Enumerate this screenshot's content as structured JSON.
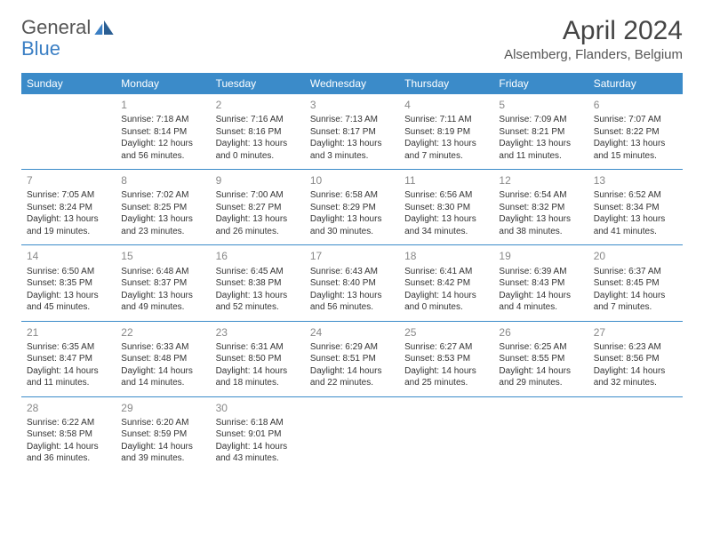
{
  "logo": {
    "part1": "General",
    "part2": "Blue"
  },
  "title": "April 2024",
  "location": "Alsemberg, Flanders, Belgium",
  "colors": {
    "header_bg": "#3b8bc9",
    "header_text": "#ffffff",
    "border": "#3b8bc9",
    "daynum": "#888888",
    "body_text": "#333333",
    "logo_blue": "#3b7fc4"
  },
  "weekdays": [
    "Sunday",
    "Monday",
    "Tuesday",
    "Wednesday",
    "Thursday",
    "Friday",
    "Saturday"
  ],
  "weeks": [
    [
      null,
      {
        "d": "1",
        "sr": "7:18 AM",
        "ss": "8:14 PM",
        "dl": "12 hours and 56 minutes."
      },
      {
        "d": "2",
        "sr": "7:16 AM",
        "ss": "8:16 PM",
        "dl": "13 hours and 0 minutes."
      },
      {
        "d": "3",
        "sr": "7:13 AM",
        "ss": "8:17 PM",
        "dl": "13 hours and 3 minutes."
      },
      {
        "d": "4",
        "sr": "7:11 AM",
        "ss": "8:19 PM",
        "dl": "13 hours and 7 minutes."
      },
      {
        "d": "5",
        "sr": "7:09 AM",
        "ss": "8:21 PM",
        "dl": "13 hours and 11 minutes."
      },
      {
        "d": "6",
        "sr": "7:07 AM",
        "ss": "8:22 PM",
        "dl": "13 hours and 15 minutes."
      }
    ],
    [
      {
        "d": "7",
        "sr": "7:05 AM",
        "ss": "8:24 PM",
        "dl": "13 hours and 19 minutes."
      },
      {
        "d": "8",
        "sr": "7:02 AM",
        "ss": "8:25 PM",
        "dl": "13 hours and 23 minutes."
      },
      {
        "d": "9",
        "sr": "7:00 AM",
        "ss": "8:27 PM",
        "dl": "13 hours and 26 minutes."
      },
      {
        "d": "10",
        "sr": "6:58 AM",
        "ss": "8:29 PM",
        "dl": "13 hours and 30 minutes."
      },
      {
        "d": "11",
        "sr": "6:56 AM",
        "ss": "8:30 PM",
        "dl": "13 hours and 34 minutes."
      },
      {
        "d": "12",
        "sr": "6:54 AM",
        "ss": "8:32 PM",
        "dl": "13 hours and 38 minutes."
      },
      {
        "d": "13",
        "sr": "6:52 AM",
        "ss": "8:34 PM",
        "dl": "13 hours and 41 minutes."
      }
    ],
    [
      {
        "d": "14",
        "sr": "6:50 AM",
        "ss": "8:35 PM",
        "dl": "13 hours and 45 minutes."
      },
      {
        "d": "15",
        "sr": "6:48 AM",
        "ss": "8:37 PM",
        "dl": "13 hours and 49 minutes."
      },
      {
        "d": "16",
        "sr": "6:45 AM",
        "ss": "8:38 PM",
        "dl": "13 hours and 52 minutes."
      },
      {
        "d": "17",
        "sr": "6:43 AM",
        "ss": "8:40 PM",
        "dl": "13 hours and 56 minutes."
      },
      {
        "d": "18",
        "sr": "6:41 AM",
        "ss": "8:42 PM",
        "dl": "14 hours and 0 minutes."
      },
      {
        "d": "19",
        "sr": "6:39 AM",
        "ss": "8:43 PM",
        "dl": "14 hours and 4 minutes."
      },
      {
        "d": "20",
        "sr": "6:37 AM",
        "ss": "8:45 PM",
        "dl": "14 hours and 7 minutes."
      }
    ],
    [
      {
        "d": "21",
        "sr": "6:35 AM",
        "ss": "8:47 PM",
        "dl": "14 hours and 11 minutes."
      },
      {
        "d": "22",
        "sr": "6:33 AM",
        "ss": "8:48 PM",
        "dl": "14 hours and 14 minutes."
      },
      {
        "d": "23",
        "sr": "6:31 AM",
        "ss": "8:50 PM",
        "dl": "14 hours and 18 minutes."
      },
      {
        "d": "24",
        "sr": "6:29 AM",
        "ss": "8:51 PM",
        "dl": "14 hours and 22 minutes."
      },
      {
        "d": "25",
        "sr": "6:27 AM",
        "ss": "8:53 PM",
        "dl": "14 hours and 25 minutes."
      },
      {
        "d": "26",
        "sr": "6:25 AM",
        "ss": "8:55 PM",
        "dl": "14 hours and 29 minutes."
      },
      {
        "d": "27",
        "sr": "6:23 AM",
        "ss": "8:56 PM",
        "dl": "14 hours and 32 minutes."
      }
    ],
    [
      {
        "d": "28",
        "sr": "6:22 AM",
        "ss": "8:58 PM",
        "dl": "14 hours and 36 minutes."
      },
      {
        "d": "29",
        "sr": "6:20 AM",
        "ss": "8:59 PM",
        "dl": "14 hours and 39 minutes."
      },
      {
        "d": "30",
        "sr": "6:18 AM",
        "ss": "9:01 PM",
        "dl": "14 hours and 43 minutes."
      },
      null,
      null,
      null,
      null
    ]
  ],
  "labels": {
    "sunrise": "Sunrise:",
    "sunset": "Sunset:",
    "daylight": "Daylight:"
  }
}
